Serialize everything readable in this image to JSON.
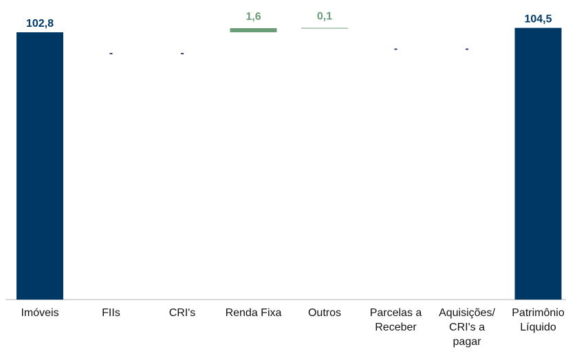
{
  "chart_data": {
    "type": "bar",
    "subtype": "waterfall",
    "categories": [
      [
        "Imóveis"
      ],
      [
        "FIIs"
      ],
      [
        "CRI's"
      ],
      [
        "Renda Fixa"
      ],
      [
        "Outros"
      ],
      [
        "Parcelas a",
        "Receber"
      ],
      [
        "Aquisições/",
        "CRI's a",
        "pagar"
      ],
      [
        "Patrimônio",
        "Líquido"
      ]
    ],
    "values": [
      102.8,
      0,
      0,
      1.6,
      0.1,
      0,
      0,
      104.5
    ],
    "data_labels": [
      "102,8",
      "-",
      "-",
      "1,6",
      "0,1",
      "-",
      "-",
      "104,5"
    ],
    "bar_kind": [
      "total",
      "change",
      "change",
      "change",
      "change",
      "change",
      "change",
      "total"
    ],
    "ylim": [
      0,
      110
    ],
    "title": "",
    "xlabel": "",
    "ylabel": "",
    "grid": false,
    "legend": "none",
    "colors": {
      "total": "#003865",
      "increase": "#6a9c78",
      "zero_label": "#1f3d73",
      "axis": "#b0b0b0"
    }
  }
}
